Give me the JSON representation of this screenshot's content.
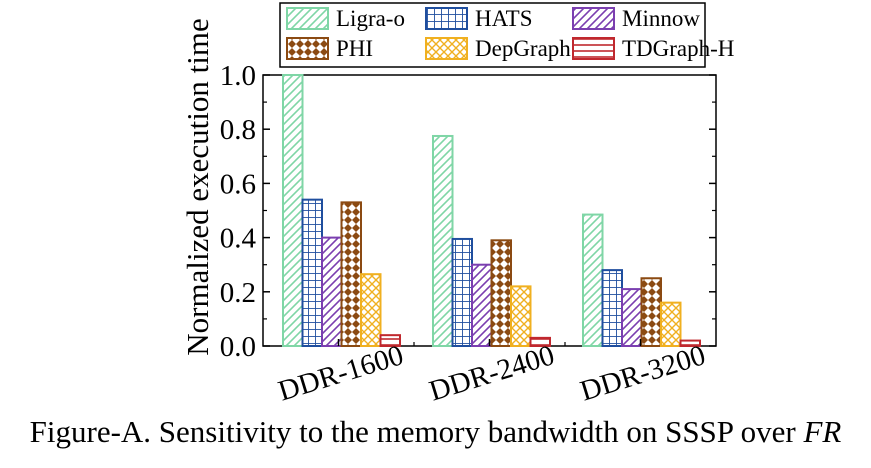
{
  "caption": {
    "text": "Figure-A. Sensitivity to the memory bandwidth on SSSP over ",
    "italic": "FR"
  },
  "chart_data": {
    "type": "bar",
    "title": "",
    "xlabel": "",
    "ylabel": "Normalized execution time",
    "ylim": [
      0,
      1.0
    ],
    "yticks": [
      "0.0",
      "0.2",
      "0.4",
      "0.6",
      "0.8",
      "1.0"
    ],
    "categories": [
      "DDR-1600",
      "DDR-2400",
      "DDR-3200"
    ],
    "grid": false,
    "legend_position": "top",
    "series": [
      {
        "name": "Ligra-o",
        "values": [
          1.0,
          0.775,
          0.485
        ],
        "color": "#7fd6a6",
        "pattern": "diagonal"
      },
      {
        "name": "HATS",
        "values": [
          0.54,
          0.395,
          0.28
        ],
        "color": "#1f4e9e",
        "pattern": "grid"
      },
      {
        "name": "Minnow",
        "values": [
          0.4,
          0.3,
          0.21
        ],
        "color": "#7b3fb0",
        "pattern": "diagonal"
      },
      {
        "name": "PHI",
        "values": [
          0.53,
          0.39,
          0.25
        ],
        "color": "#8b4a12",
        "pattern": "diamond"
      },
      {
        "name": "DepGraph",
        "values": [
          0.265,
          0.22,
          0.16
        ],
        "color": "#f0b020",
        "pattern": "crosshatch"
      },
      {
        "name": "TDGraph-H",
        "values": [
          0.04,
          0.03,
          0.02
        ],
        "color": "#c0282e",
        "pattern": "horizontal"
      }
    ]
  }
}
